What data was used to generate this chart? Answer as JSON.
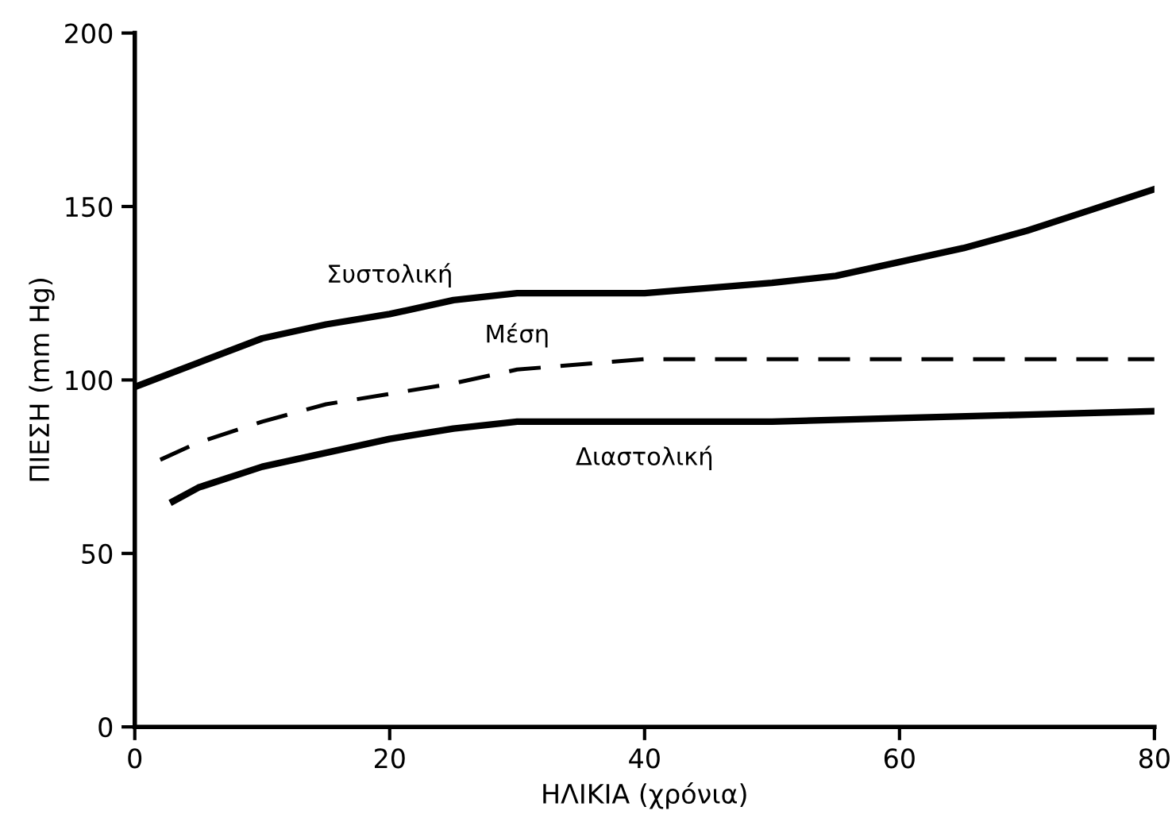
{
  "chart_data": {
    "type": "line",
    "xlabel": "ΗΛΙΚΙΑ (χρόνια)",
    "ylabel": "ΠΙΕΣΗ (mm Hg)",
    "xlim": [
      0,
      80
    ],
    "ylim": [
      0,
      200
    ],
    "xticks": [
      0,
      20,
      40,
      60,
      80
    ],
    "yticks": [
      0,
      50,
      100,
      150,
      200
    ],
    "grid": false,
    "legend": false,
    "marker": "none",
    "series": [
      {
        "name": "Συστολική",
        "color": "#000000",
        "line_style": "solid",
        "x": [
          0,
          5,
          10,
          15,
          20,
          25,
          30,
          40,
          50,
          55,
          60,
          65,
          70,
          75,
          80
        ],
        "values": [
          98,
          105,
          112,
          116,
          119,
          123,
          125,
          125,
          128,
          130,
          134,
          138,
          143,
          149,
          155
        ]
      },
      {
        "name": "Μέση",
        "color": "#000000",
        "line_style": "dashed",
        "x": [
          2,
          5,
          10,
          15,
          20,
          25,
          30,
          40,
          50,
          60,
          70,
          80
        ],
        "values": [
          77,
          82,
          88,
          93,
          96,
          99,
          103,
          106,
          106,
          106,
          106,
          106
        ]
      },
      {
        "name": "Διαστολική",
        "color": "#000000",
        "line_style": "solid",
        "x": [
          3,
          5,
          10,
          15,
          20,
          25,
          30,
          40,
          50,
          60,
          70,
          80
        ],
        "values": [
          65,
          69,
          75,
          79,
          83,
          86,
          88,
          88,
          88,
          89,
          90,
          91
        ]
      }
    ]
  }
}
